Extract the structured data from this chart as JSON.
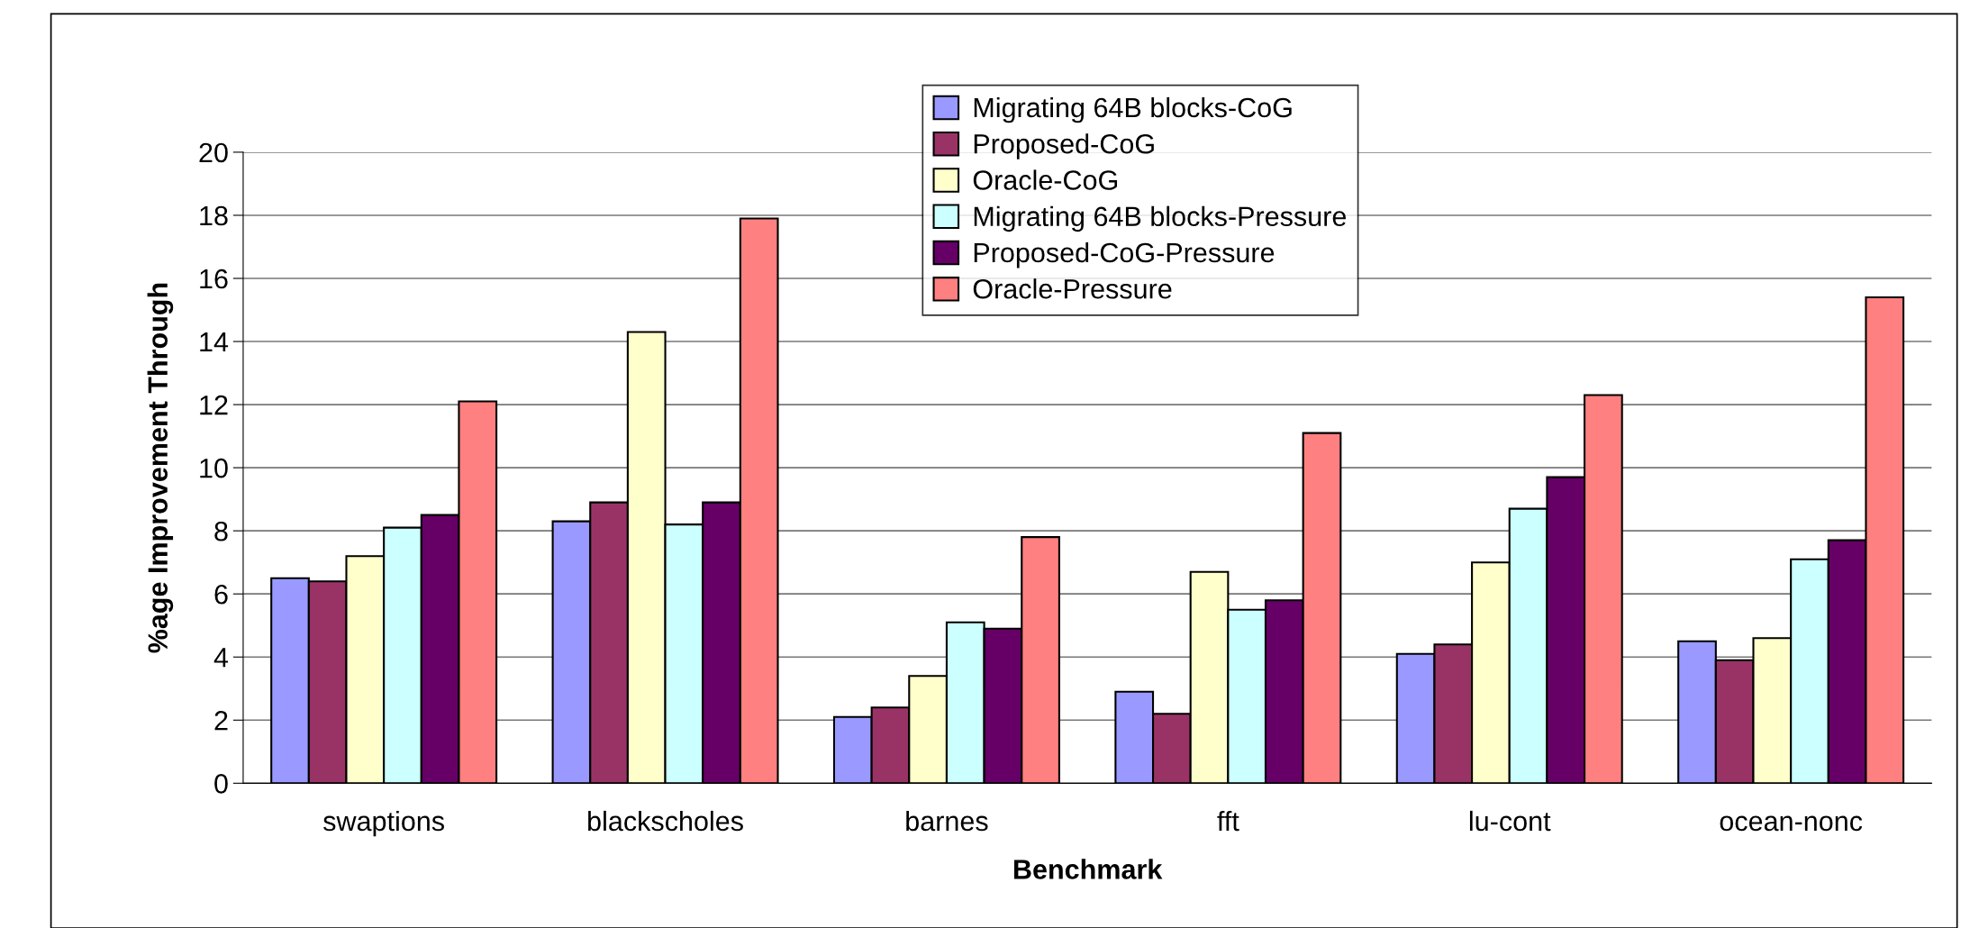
{
  "chart_data": {
    "type": "bar",
    "xlabel": "Benchmark",
    "ylabel": "%age Improvement Through",
    "categories": [
      "swaptions",
      "blackscholes",
      "barnes",
      "fft",
      "lu-cont",
      "ocean-nonc"
    ],
    "series": [
      {
        "name": "Migrating 64B blocks-CoG",
        "color": "#9999ff",
        "values": [
          6.5,
          8.3,
          2.1,
          2.9,
          4.1,
          4.5
        ]
      },
      {
        "name": "Proposed-CoG",
        "color": "#993366",
        "values": [
          6.4,
          8.9,
          2.4,
          2.2,
          4.4,
          3.9
        ]
      },
      {
        "name": "Oracle-CoG",
        "color": "#ffffcc",
        "values": [
          7.2,
          14.3,
          3.4,
          6.7,
          7.0,
          4.6
        ]
      },
      {
        "name": "Migrating 64B blocks-Pressure",
        "color": "#ccffff",
        "values": [
          8.1,
          8.2,
          5.1,
          5.5,
          8.7,
          7.1
        ]
      },
      {
        "name": "Proposed-CoG-Pressure",
        "color": "#660066",
        "values": [
          8.5,
          8.9,
          4.9,
          5.8,
          9.7,
          7.7
        ]
      },
      {
        "name": "Oracle-Pressure",
        "color": "#ff8080",
        "values": [
          12.1,
          17.9,
          7.8,
          11.1,
          12.3,
          15.4
        ]
      }
    ],
    "ylim": [
      0,
      20
    ],
    "yticks": [
      0,
      2,
      4,
      6,
      8,
      10,
      12,
      14,
      16,
      18,
      20
    ],
    "grid": "y",
    "legend": "top"
  }
}
